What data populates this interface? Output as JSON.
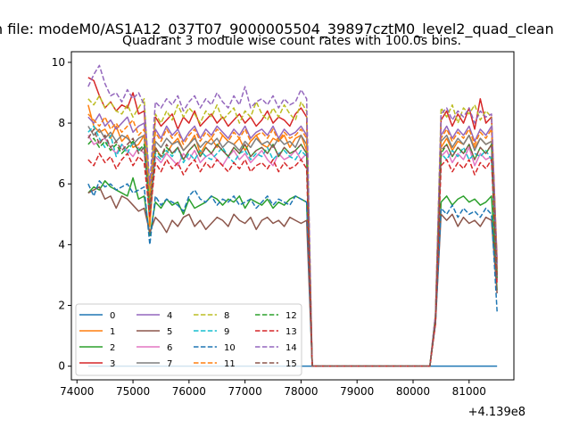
{
  "figure": {
    "suptitle": "n file: modeM0/AS1A12_037T07_9000005504_39897cztM0_level2_quad_clean",
    "title": "Quadrant 3 module wise count rates with 100.0s bins.",
    "offset_label": "+4.139e8"
  },
  "chart_data": {
    "type": "line",
    "x_offset": 413900000,
    "xlim": [
      73900,
      81800
    ],
    "ylim": [
      -0.45,
      10.35
    ],
    "xticks": [
      74000,
      75000,
      76000,
      77000,
      78000,
      79000,
      80000,
      81000
    ],
    "xtick_labels": [
      "74000",
      "75000",
      "76000",
      "77000",
      "78000",
      "79000",
      "80000",
      "81000"
    ],
    "yticks": [
      0,
      2,
      4,
      6,
      8,
      10
    ],
    "ytick_labels": [
      "0",
      "2",
      "4",
      "6",
      "8",
      "10"
    ],
    "grid": false,
    "legend_placement": "lower-left",
    "legend_columns": 4,
    "seg1": [
      74200,
      78100
    ],
    "seg2": [
      80400,
      81500
    ],
    "bin_width": 100,
    "series": [
      {
        "name": "0",
        "color": "#1f77b4",
        "dash": "solid",
        "segment1": [
          0,
          0,
          0,
          0,
          0,
          0,
          0,
          0,
          0,
          0,
          0,
          0,
          0,
          0,
          0,
          0,
          0,
          0,
          0,
          0,
          0,
          0,
          0,
          0,
          0,
          0,
          0,
          0,
          0,
          0,
          0,
          0,
          0,
          0,
          0,
          0,
          0,
          0,
          0,
          0
        ],
        "segment2": [
          0,
          0,
          0,
          0,
          0,
          0,
          0,
          0,
          0,
          0,
          0,
          0
        ]
      },
      {
        "name": "1",
        "color": "#ff7f0e",
        "dash": "solid",
        "segment1": [
          8.6,
          7.9,
          7.7,
          7.8,
          7.5,
          7.9,
          7.4,
          7.6,
          7.2,
          7.3,
          7.6,
          4.6,
          7.2,
          6.9,
          7.0,
          7.3,
          7.5,
          7.1,
          7.3,
          7.6,
          7.0,
          7.3,
          7.5,
          7.2,
          7.6,
          7.4,
          7.3,
          7.5,
          7.1,
          7.4,
          7.6,
          7.3,
          7.2,
          7.5,
          7.4,
          7.6,
          7.2,
          7.5,
          7.6,
          7.1
        ],
        "segment2": [
          1.5,
          7.2,
          7.5,
          7.1,
          7.4,
          7.3,
          7.6,
          7.2,
          7.5,
          7.3,
          7.4,
          3.0
        ]
      },
      {
        "name": "2",
        "color": "#2ca02c",
        "dash": "solid",
        "segment1": [
          5.7,
          5.9,
          5.8,
          6.1,
          5.9,
          5.8,
          5.7,
          5.6,
          6.2,
          5.5,
          5.6,
          4.3,
          5.4,
          5.2,
          5.5,
          5.3,
          5.4,
          5.0,
          5.5,
          5.2,
          5.3,
          5.4,
          5.6,
          5.5,
          5.3,
          5.5,
          5.4,
          5.6,
          5.2,
          5.5,
          5.4,
          5.3,
          5.5,
          5.2,
          5.4,
          5.3,
          5.5,
          5.6,
          5.5,
          5.4
        ],
        "segment2": [
          1.5,
          5.4,
          5.6,
          5.3,
          5.5,
          5.6,
          5.4,
          5.5,
          5.3,
          5.4,
          5.6,
          2.5
        ]
      },
      {
        "name": "3",
        "color": "#d62728",
        "dash": "solid",
        "segment1": [
          9.5,
          9.4,
          8.9,
          8.5,
          8.7,
          8.4,
          8.6,
          8.5,
          9.0,
          8.3,
          8.4,
          5.6,
          8.2,
          7.9,
          8.1,
          8.3,
          7.8,
          8.2,
          8.0,
          8.4,
          7.9,
          8.1,
          8.3,
          8.0,
          8.2,
          7.9,
          8.1,
          8.3,
          8.0,
          8.2,
          7.9,
          8.1,
          8.4,
          8.0,
          8.2,
          8.1,
          7.9,
          8.3,
          8.5,
          8.2
        ],
        "segment2": [
          1.7,
          8.1,
          8.4,
          7.9,
          8.3,
          8.0,
          8.5,
          7.8,
          8.8,
          8.0,
          8.2,
          3.5
        ]
      },
      {
        "name": "4",
        "color": "#9467bd",
        "dash": "solid",
        "segment1": [
          8.2,
          8.0,
          8.3,
          7.9,
          8.1,
          7.8,
          8.0,
          8.2,
          7.7,
          7.9,
          8.0,
          5.8,
          7.8,
          7.5,
          7.9,
          7.6,
          7.8,
          7.4,
          7.7,
          7.9,
          7.5,
          7.8,
          7.6,
          7.9,
          7.7,
          7.5,
          7.8,
          7.6,
          7.9,
          7.5,
          7.7,
          7.8,
          7.6,
          7.9,
          7.5,
          7.8,
          7.6,
          7.7,
          7.9,
          7.6
        ],
        "segment2": [
          1.6,
          7.6,
          7.9,
          7.5,
          7.8,
          7.6,
          7.9,
          7.4,
          7.8,
          7.6,
          7.9,
          3.2
        ]
      },
      {
        "name": "5",
        "color": "#8c564b",
        "dash": "solid",
        "segment1": [
          5.7,
          5.8,
          5.9,
          5.5,
          5.6,
          5.2,
          5.6,
          5.5,
          5.3,
          5.1,
          5.2,
          4.4,
          4.9,
          4.7,
          4.4,
          4.8,
          4.6,
          4.9,
          5.0,
          4.6,
          4.8,
          4.5,
          4.7,
          4.9,
          4.8,
          4.6,
          5.0,
          4.8,
          4.7,
          4.9,
          4.5,
          4.8,
          4.9,
          4.7,
          4.8,
          4.6,
          4.9,
          4.8,
          4.7,
          4.8
        ],
        "segment2": [
          1.4,
          5.0,
          4.8,
          5.0,
          4.6,
          4.9,
          4.7,
          4.8,
          4.6,
          4.9,
          4.8,
          2.4
        ]
      },
      {
        "name": "6",
        "color": "#e377c2",
        "dash": "solid",
        "segment1": [
          7.6,
          7.3,
          7.4,
          7.5,
          7.2,
          7.0,
          7.3,
          7.1,
          6.9,
          7.2,
          7.0,
          5.3,
          6.9,
          6.7,
          7.0,
          6.8,
          6.6,
          7.0,
          6.8,
          7.1,
          6.7,
          6.9,
          7.0,
          6.8,
          6.6,
          6.9,
          7.1,
          6.8,
          7.0,
          6.7,
          6.9,
          7.1,
          6.8,
          6.6,
          7.0,
          6.8,
          6.9,
          7.1,
          6.8,
          7.0
        ],
        "segment2": [
          1.5,
          6.9,
          7.1,
          6.7,
          7.0,
          6.8,
          7.2,
          6.6,
          7.0,
          6.8,
          6.9,
          3.0
        ]
      },
      {
        "name": "7",
        "color": "#7f7f7f",
        "dash": "solid",
        "segment1": [
          7.9,
          7.6,
          7.8,
          7.5,
          7.7,
          7.4,
          7.6,
          7.5,
          7.3,
          7.5,
          7.6,
          5.0,
          7.4,
          7.2,
          7.5,
          7.3,
          7.4,
          7.1,
          7.3,
          7.5,
          7.2,
          7.4,
          7.3,
          7.5,
          7.2,
          7.4,
          7.3,
          7.1,
          7.4,
          7.2,
          7.5,
          7.3,
          7.4,
          7.2,
          7.5,
          7.3,
          7.4,
          7.2,
          7.6,
          7.3
        ],
        "segment2": [
          1.5,
          7.4,
          7.6,
          7.2,
          7.5,
          7.3,
          7.6,
          7.1,
          7.5,
          7.3,
          7.4,
          3.0
        ]
      },
      {
        "name": "8",
        "color": "#bcbd22",
        "dash": "dashed",
        "segment1": [
          8.8,
          8.6,
          8.9,
          8.5,
          8.7,
          8.4,
          8.3,
          8.6,
          8.2,
          8.5,
          8.8,
          5.7,
          8.3,
          8.0,
          8.4,
          8.1,
          8.6,
          8.2,
          8.5,
          8.3,
          8.0,
          8.4,
          8.2,
          8.6,
          8.1,
          8.3,
          8.5,
          8.0,
          8.4,
          8.2,
          8.7,
          8.3,
          8.1,
          8.5,
          8.2,
          8.6,
          8.3,
          8.1,
          8.7,
          8.4
        ],
        "segment2": [
          1.7,
          8.5,
          8.2,
          8.6,
          8.0,
          8.5,
          8.3,
          8.6,
          8.1,
          8.4,
          8.2,
          3.4
        ]
      },
      {
        "name": "9",
        "color": "#17becf",
        "dash": "dashed",
        "segment1": [
          7.7,
          7.9,
          7.5,
          7.2,
          7.6,
          6.9,
          7.3,
          7.0,
          7.4,
          7.1,
          7.2,
          5.0,
          7.0,
          6.8,
          7.1,
          6.9,
          7.2,
          6.7,
          7.0,
          6.8,
          7.1,
          6.9,
          6.8,
          7.0,
          7.2,
          6.9,
          6.7,
          7.0,
          7.1,
          6.8,
          7.0,
          6.9,
          7.2,
          6.8,
          7.0,
          7.1,
          6.9,
          6.8,
          7.1,
          6.9
        ],
        "segment2": [
          1.6,
          7.0,
          6.8,
          7.1,
          6.9,
          7.2,
          6.8,
          7.0,
          6.9,
          7.1,
          6.8,
          2.8
        ]
      },
      {
        "name": "10",
        "color": "#1f77b4",
        "dash": "dashed",
        "segment1": [
          6.0,
          5.6,
          6.1,
          5.9,
          6.0,
          5.8,
          5.9,
          6.0,
          5.7,
          5.8,
          5.9,
          4.0,
          5.6,
          5.3,
          5.5,
          5.4,
          5.3,
          5.1,
          5.6,
          5.8,
          5.5,
          5.4,
          5.6,
          5.3,
          5.5,
          5.4,
          5.6,
          5.3,
          5.4,
          5.5,
          5.2,
          5.4,
          5.6,
          5.3,
          5.5,
          5.4,
          5.3,
          5.6,
          5.5,
          5.4
        ],
        "segment2": [
          1.4,
          5.2,
          5.0,
          5.3,
          4.9,
          5.2,
          5.0,
          5.1,
          4.9,
          5.2,
          5.0,
          1.8
        ]
      },
      {
        "name": "11",
        "color": "#ff7f0e",
        "dash": "dashed",
        "segment1": [
          8.3,
          8.1,
          7.9,
          8.2,
          7.8,
          8.0,
          7.7,
          7.9,
          8.1,
          7.6,
          7.8,
          5.4,
          7.7,
          7.4,
          7.8,
          7.5,
          7.7,
          7.3,
          7.6,
          7.8,
          7.4,
          7.7,
          7.5,
          7.8,
          7.6,
          7.4,
          7.7,
          7.5,
          7.8,
          7.4,
          7.6,
          7.7,
          7.5,
          7.8,
          7.4,
          7.7,
          7.5,
          7.6,
          7.8,
          7.5
        ],
        "segment2": [
          1.6,
          7.5,
          7.8,
          7.4,
          7.7,
          7.5,
          7.8,
          7.3,
          7.7,
          7.5,
          7.8,
          3.1
        ]
      },
      {
        "name": "12",
        "color": "#2ca02c",
        "dash": "dashed",
        "segment1": [
          7.3,
          7.5,
          7.2,
          7.4,
          7.1,
          7.3,
          7.0,
          7.2,
          7.4,
          7.1,
          7.3,
          5.2,
          7.1,
          6.9,
          7.2,
          7.0,
          7.2,
          6.8,
          7.1,
          7.3,
          6.9,
          7.2,
          7.0,
          7.3,
          7.1,
          6.9,
          7.2,
          7.0,
          7.3,
          6.9,
          7.1,
          7.2,
          7.0,
          7.3,
          6.9,
          7.2,
          7.0,
          7.1,
          7.3,
          7.0
        ],
        "segment2": [
          1.5,
          7.0,
          7.3,
          6.9,
          7.2,
          7.0,
          7.3,
          6.8,
          7.2,
          7.0,
          7.3,
          2.9
        ]
      },
      {
        "name": "13",
        "color": "#d62728",
        "dash": "dashed",
        "segment1": [
          6.8,
          6.6,
          7.0,
          6.7,
          6.9,
          6.5,
          6.8,
          7.0,
          6.6,
          6.9,
          6.7,
          4.9,
          6.7,
          6.4,
          6.8,
          6.5,
          6.7,
          6.3,
          6.6,
          6.8,
          6.4,
          6.7,
          6.5,
          6.8,
          6.6,
          6.4,
          6.7,
          6.5,
          6.8,
          6.4,
          6.6,
          6.7,
          6.5,
          6.8,
          6.4,
          6.7,
          6.5,
          6.6,
          6.8,
          6.5
        ],
        "segment2": [
          1.4,
          6.6,
          6.8,
          6.4,
          6.7,
          6.5,
          6.8,
          6.3,
          6.7,
          6.5,
          6.8,
          2.7
        ]
      },
      {
        "name": "14",
        "color": "#9467bd",
        "dash": "dashed",
        "segment1": [
          9.2,
          9.6,
          9.9,
          9.3,
          8.9,
          9.0,
          8.7,
          9.1,
          8.8,
          9.0,
          8.6,
          6.0,
          8.7,
          8.5,
          8.8,
          8.6,
          8.9,
          8.4,
          8.7,
          8.9,
          8.5,
          8.8,
          8.6,
          9.0,
          8.7,
          8.5,
          8.9,
          8.6,
          9.2,
          8.5,
          8.7,
          8.8,
          8.6,
          8.9,
          8.5,
          8.8,
          8.6,
          8.7,
          9.1,
          8.8
        ],
        "segment2": [
          1.7,
          8.3,
          8.5,
          8.1,
          8.4,
          8.2,
          8.5,
          8.0,
          8.4,
          8.2,
          8.3,
          3.3
        ]
      },
      {
        "name": "15",
        "color": "#8c564b",
        "dash": "dashed",
        "segment1": [
          7.5,
          7.8,
          7.3,
          7.6,
          7.2,
          7.4,
          7.1,
          7.3,
          7.5,
          7.0,
          7.2,
          5.1,
          7.2,
          6.9,
          7.3,
          7.0,
          7.2,
          6.8,
          7.1,
          7.3,
          6.9,
          7.2,
          7.0,
          7.3,
          7.1,
          6.9,
          7.2,
          7.0,
          7.3,
          6.9,
          7.1,
          7.2,
          7.0,
          7.3,
          6.9,
          7.2,
          7.0,
          7.1,
          7.3,
          7.0
        ],
        "segment2": [
          1.5,
          7.1,
          7.3,
          6.9,
          7.2,
          7.0,
          7.3,
          6.8,
          7.2,
          7.0,
          7.3,
          2.9
        ]
      }
    ]
  }
}
